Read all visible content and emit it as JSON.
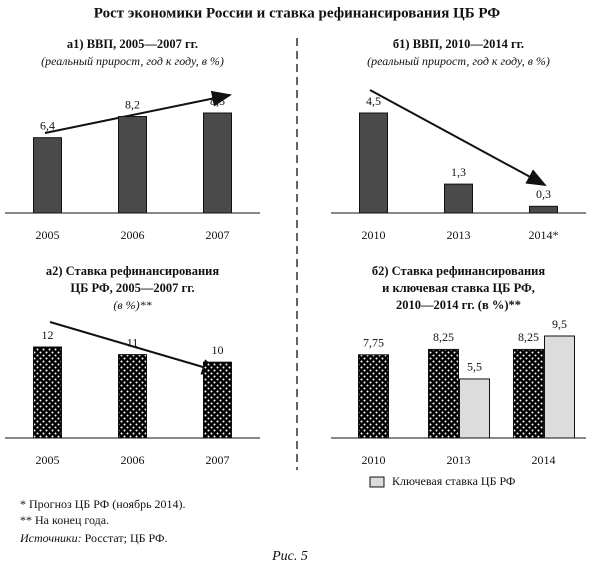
{
  "title": "Рост экономики России и ставка рефинансирования ЦБ РФ",
  "chart_data": [
    {
      "type": "bar",
      "title": [
        "а1) ВВП, 2005—2007 гг."
      ],
      "subtitle": "(реальный прирост, год к году, в %)",
      "categories": [
        "2005",
        "2006",
        "2007"
      ],
      "values": [
        6.4,
        8.2,
        8.5
      ],
      "value_labels": [
        "6,4",
        "8,2",
        "8,5"
      ],
      "color": "#4a4a4a"
    },
    {
      "type": "bar",
      "title": [
        "б1) ВВП, 2010—2014 гг."
      ],
      "subtitle": "(реальный прирост, год к году, в %)",
      "categories": [
        "2010",
        "2013",
        "2014*"
      ],
      "values": [
        4.5,
        1.3,
        0.3
      ],
      "value_labels": [
        "4,5",
        "1,3",
        "0,3"
      ],
      "color": "#4a4a4a"
    },
    {
      "type": "bar",
      "title": [
        "а2) Ставка рефинансирования",
        "ЦБ РФ, 2005—2007 гг."
      ],
      "subtitle": "(в %)**",
      "categories": [
        "2005",
        "2006",
        "2007"
      ],
      "values": [
        12,
        11,
        10
      ],
      "color": "#2e2e2e",
      "pattern": "dots"
    },
    {
      "type": "grouped-bar",
      "title": [
        "б2) Ставка рефинансирования",
        "и ключевая ставка ЦБ РФ,",
        "2010—2014 гг. (в %)**"
      ],
      "categories": [
        "2010",
        "2013",
        "2014"
      ],
      "series": [
        {
          "color": "#2e2e2e",
          "pattern": "dots",
          "values": [
            7.75,
            8.25,
            8.25
          ],
          "value_labels": [
            "7,75",
            "8,25",
            "8,25"
          ]
        },
        {
          "name": "Ключевая ставка ЦБ РФ",
          "color": "#dcdcdc",
          "values": [
            null,
            5.5,
            9.5
          ],
          "value_labels": [
            null,
            "5,5",
            "9,5"
          ]
        }
      ]
    }
  ],
  "footnotes": [
    "* Прогноз ЦБ РФ (ноябрь 2014).",
    "** На конец года."
  ],
  "sources": {
    "label": "Источники:",
    "text": " Росстат; ЦБ РФ."
  },
  "caption": "Рис. 5"
}
